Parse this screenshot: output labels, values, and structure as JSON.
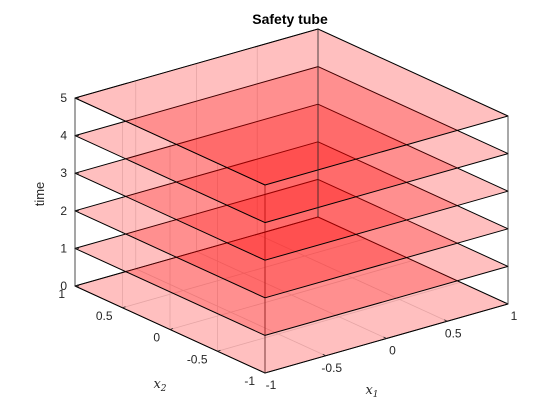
{
  "chart_data": {
    "type": "surface3d",
    "title": "Safety tube",
    "xlabel": "x",
    "xlabel_sub": "1",
    "ylabel": "x",
    "ylabel_sub": "2",
    "zlabel": "time",
    "xlim": [
      -1,
      1
    ],
    "ylim": [
      -1,
      1
    ],
    "zlim": [
      0,
      5
    ],
    "xticks": [
      "-1",
      "-0.5",
      "0",
      "0.5",
      "1"
    ],
    "yticks": [
      "-1",
      "-0.5",
      "0",
      "0.5",
      "1"
    ],
    "zticks": [
      "0",
      "1",
      "2",
      "3",
      "4",
      "5"
    ],
    "grid": true,
    "box": true,
    "face_color": "#ff0000",
    "face_alpha": 0.25,
    "slices": [
      {
        "time": 0,
        "x_range": [
          -1,
          1
        ],
        "y_range": [
          -1,
          1
        ]
      },
      {
        "time": 1,
        "x_range": [
          -1,
          1
        ],
        "y_range": [
          -1,
          1
        ]
      },
      {
        "time": 2,
        "x_range": [
          -1,
          1
        ],
        "y_range": [
          -1,
          1
        ]
      },
      {
        "time": 3,
        "x_range": [
          -1,
          1
        ],
        "y_range": [
          -1,
          1
        ]
      },
      {
        "time": 4,
        "x_range": [
          -1,
          1
        ],
        "y_range": [
          -1,
          1
        ]
      },
      {
        "time": 5,
        "x_range": [
          -1,
          1
        ],
        "y_range": [
          -1,
          1
        ]
      }
    ]
  }
}
